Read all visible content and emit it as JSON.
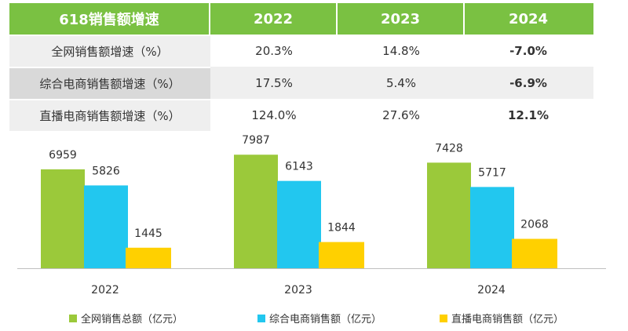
{
  "table": {
    "header": [
      "618销售额增速",
      "2022",
      "2023",
      "2024"
    ],
    "rows": [
      {
        "label": "全网销售额增速（%）",
        "values": [
          "20.3%",
          "14.8%",
          "-7.0%"
        ]
      },
      {
        "label": "综合电商销售额增速（%）",
        "values": [
          "17.5%",
          "5.4%",
          "-6.9%"
        ]
      },
      {
        "label": "直播电商销售额增速（%）",
        "values": [
          "124.0%",
          "27.6%",
          "12.1%"
        ]
      }
    ]
  },
  "colors": {
    "green": "#9bc93a",
    "blue": "#22c7ef",
    "yellow": "#ffd000",
    "header_bg": "#7ac142"
  },
  "chart_data": {
    "type": "bar",
    "categories": [
      "2022",
      "2023",
      "2024"
    ],
    "series": [
      {
        "name": "全网销售总额（亿元）",
        "values": [
          6959,
          7987,
          7428
        ],
        "color": "#9bc93a"
      },
      {
        "name": "综合电商销售额（亿元）",
        "values": [
          5826,
          6143,
          5717
        ],
        "color": "#22c7ef"
      },
      {
        "name": "直播电商销售额（亿元）",
        "values": [
          1445,
          1844,
          2068
        ],
        "color": "#ffd000"
      }
    ],
    "ylim": [
      0,
      8500
    ],
    "legend": "bottom",
    "grid": false
  }
}
